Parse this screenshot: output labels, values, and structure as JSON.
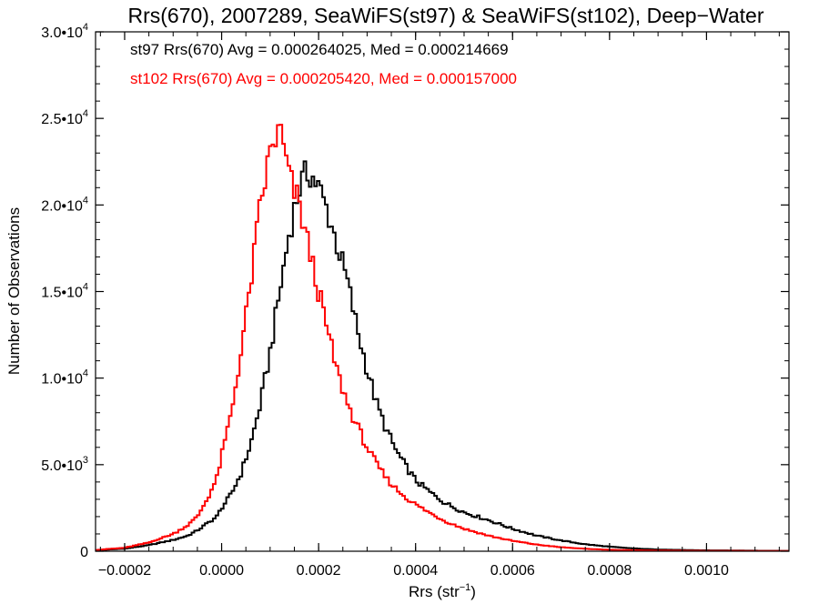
{
  "chart_data": {
    "type": "histogram",
    "title": "Rrs(670), 2007289, SeaWiFS(st97) & SeaWiFS(st102), Deep−Water",
    "xlabel": "Rrs (str",
    "xlabel_sup": "−1",
    "xlabel_end": ")",
    "ylabel": "Number of Observations",
    "xlim": [
      -0.00026,
      0.00117
    ],
    "ylim": [
      0,
      30000
    ],
    "x_ticks": [
      {
        "value": -0.0002,
        "label": "−0.0002"
      },
      {
        "value": 0.0,
        "label": "0.0000"
      },
      {
        "value": 0.0002,
        "label": "0.0002"
      },
      {
        "value": 0.0004,
        "label": "0.0004"
      },
      {
        "value": 0.0006,
        "label": "0.0006"
      },
      {
        "value": 0.0008,
        "label": "0.0008"
      },
      {
        "value": 0.001,
        "label": "0.0010"
      }
    ],
    "y_ticks": [
      {
        "value": 0,
        "mant": "0",
        "exp": ""
      },
      {
        "value": 5000,
        "mant": "5.0•10",
        "exp": "3"
      },
      {
        "value": 10000,
        "mant": "1.0•10",
        "exp": "4"
      },
      {
        "value": 15000,
        "mant": "1.5•10",
        "exp": "4"
      },
      {
        "value": 20000,
        "mant": "2.0•10",
        "exp": "4"
      },
      {
        "value": 25000,
        "mant": "2.5•10",
        "exp": "4"
      },
      {
        "value": 30000,
        "mant": "3.0•10",
        "exp": "4"
      }
    ],
    "series": [
      {
        "name": "st97",
        "legend": "st97 Rrs(670) Avg = 0.000264025, Med = 0.000214669",
        "color": "#000000",
        "x": [
          -0.00026,
          -0.0002,
          -0.00015,
          -0.0001,
          -7e-05,
          -5e-05,
          -3e-05,
          -1e-05,
          0.0,
          2e-05,
          4e-05,
          6e-05,
          8e-05,
          0.0001,
          0.00012,
          0.00014,
          0.00016,
          0.00018,
          0.0002,
          0.00022,
          0.00024,
          0.00026,
          0.00028,
          0.0003,
          0.00032,
          0.00034,
          0.00036,
          0.00038,
          0.0004,
          0.00043,
          0.00046,
          0.0005,
          0.00055,
          0.0006,
          0.00065,
          0.0007,
          0.00075,
          0.0008,
          0.00085,
          0.0009,
          0.00095,
          0.001,
          0.0011,
          0.00117
        ],
        "y": [
          50,
          150,
          350,
          650,
          900,
          1200,
          1600,
          2000,
          2500,
          3300,
          4500,
          6200,
          8500,
          11500,
          15000,
          18500,
          21000,
          22000,
          21000,
          19500,
          17500,
          15500,
          12800,
          10500,
          8500,
          7000,
          5800,
          4900,
          4100,
          3400,
          2800,
          2250,
          1800,
          1300,
          900,
          620,
          400,
          260,
          160,
          100,
          70,
          50,
          30,
          20
        ]
      },
      {
        "name": "st102",
        "legend": "st102 Rrs(670) Avg = 0.000205420, Med = 0.000157000",
        "color": "#ff0000",
        "x": [
          -0.00026,
          -0.0002,
          -0.00015,
          -0.0001,
          -7e-05,
          -5e-05,
          -3e-05,
          -1e-05,
          0.0,
          2e-05,
          4e-05,
          6e-05,
          8e-05,
          0.0001,
          0.00011,
          0.00012,
          0.00013,
          0.00014,
          0.00016,
          0.00018,
          0.0002,
          0.00022,
          0.00024,
          0.00026,
          0.00028,
          0.0003,
          0.00032,
          0.00034,
          0.00036,
          0.00038,
          0.0004,
          0.00043,
          0.00046,
          0.0005,
          0.00055,
          0.0006,
          0.00065,
          0.0007,
          0.00075,
          0.0008,
          0.00085,
          0.0009,
          0.00095,
          0.001,
          0.0011,
          0.00117
        ],
        "y": [
          70,
          200,
          500,
          1000,
          1500,
          2000,
          3000,
          4200,
          5500,
          8000,
          11500,
          15500,
          20000,
          23000,
          23800,
          24300,
          23000,
          21500,
          20000,
          17500,
          15000,
          12500,
          10200,
          8500,
          7200,
          6000,
          5000,
          4200,
          3600,
          3100,
          2700,
          2200,
          1750,
          1300,
          900,
          600,
          380,
          230,
          140,
          85,
          55,
          40,
          30,
          20,
          15,
          10
        ]
      }
    ],
    "grid": false,
    "legend_position": "top-left"
  }
}
